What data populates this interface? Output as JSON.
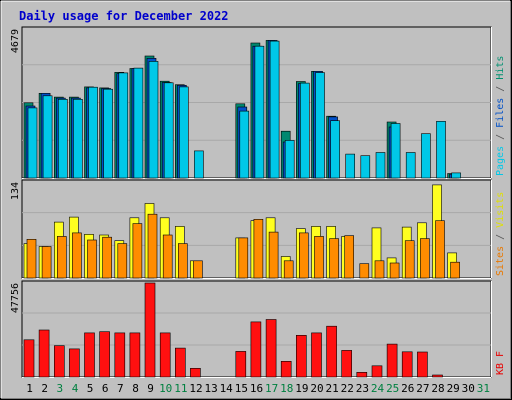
{
  "chart_data": {
    "type": "bar",
    "title": "Daily usage for December 2022",
    "x": [
      "1",
      "2",
      "3",
      "4",
      "5",
      "6",
      "7",
      "8",
      "9",
      "10",
      "11",
      "12",
      "13",
      "14",
      "15",
      "16",
      "17",
      "18",
      "19",
      "20",
      "21",
      "22",
      "23",
      "24",
      "25",
      "26",
      "27",
      "28",
      "29",
      "30",
      "31"
    ],
    "weekend_days": [
      3,
      4,
      10,
      11,
      17,
      18,
      24,
      25,
      31
    ],
    "panels": [
      {
        "id": "hits",
        "ymax_label": "4679",
        "ymax": 4679,
        "right_label": [
          {
            "text": "Pages",
            "color": "#00c8e8"
          },
          {
            "text": " / ",
            "color": "#555555"
          },
          {
            "text": "Files",
            "color": "#0050c8"
          },
          {
            "text": " / ",
            "color": "#555555"
          },
          {
            "text": "Hits",
            "color": "#009070"
          }
        ],
        "series": [
          {
            "name": "Hits",
            "color": "#008870",
            "values": [
              2360,
              2660,
              2540,
              2540,
              2860,
              2830,
              3320,
              3440,
              3830,
              3040,
              2930,
              0,
              0,
              0,
              2330,
              4240,
              4320,
              1470,
              3030,
              3350,
              1940,
              0,
              0,
              0,
              1760,
              0,
              0,
              0,
              140,
              0,
              0
            ]
          },
          {
            "name": "Files",
            "color": "#0050c8",
            "values": [
              2260,
              2660,
              2510,
              2510,
              2830,
              2810,
              3280,
              3440,
              3760,
              3000,
              2910,
              0,
              0,
              0,
              2230,
              4140,
              4320,
              1130,
              2960,
              3350,
              1920,
              0,
              0,
              0,
              1600,
              0,
              0,
              0,
              120,
              0,
              0
            ]
          },
          {
            "name": "Pages",
            "color": "#00c8e8",
            "values": [
              2200,
              2580,
              2470,
              2470,
              2850,
              2790,
              3300,
              3450,
              3660,
              2990,
              2860,
              850,
              0,
              0,
              2100,
              4140,
              4300,
              1180,
              2980,
              3310,
              1800,
              750,
              700,
              800,
              1710,
              800,
              1390,
              1780,
              160,
              0,
              0
            ]
          }
        ]
      },
      {
        "id": "visits",
        "ymax_label": "134",
        "ymax": 134,
        "right_label": [
          {
            "text": "Sites",
            "color": "#e87800"
          },
          {
            "text": " / ",
            "color": "#555555"
          },
          {
            "text": "Visits",
            "color": "#e0e000"
          }
        ],
        "series": [
          {
            "name": "Visits",
            "color": "#ffff20",
            "values": [
              48,
              44,
              78,
              85,
              61,
              60,
              52,
              84,
              104,
              84,
              72,
              24,
              0,
              0,
              56,
              80,
              84,
              30,
              69,
              72,
              72,
              58,
              0,
              70,
              28,
              71,
              77,
              130,
              35,
              0,
              0
            ]
          },
          {
            "name": "Sites",
            "color": "#ff8c00",
            "values": [
              54,
              44,
              58,
              63,
              53,
              57,
              48,
              76,
              89,
              60,
              48,
              24,
              0,
              0,
              56,
              82,
              64,
              24,
              63,
              58,
              55,
              59,
              20,
              24,
              21,
              52,
              55,
              80,
              22,
              0,
              0
            ]
          }
        ]
      },
      {
        "id": "kbytes",
        "ymax_label": "47756",
        "ymax": 47756,
        "right_label": [
          {
            "text": "KB F",
            "color": "#e80000"
          }
        ],
        "series": [
          {
            "name": "KB F",
            "color": "#ff1010",
            "values": [
              18900,
              23900,
              15900,
              14300,
              22400,
              23000,
              22400,
              22400,
              47756,
              22400,
              14700,
              4400,
              0,
              0,
              13000,
              28000,
              29200,
              8000,
              21200,
              22400,
              25800,
              13500,
              2400,
              5700,
              16700,
              12800,
              12700,
              1000,
              0,
              0,
              0
            ]
          }
        ]
      }
    ]
  }
}
